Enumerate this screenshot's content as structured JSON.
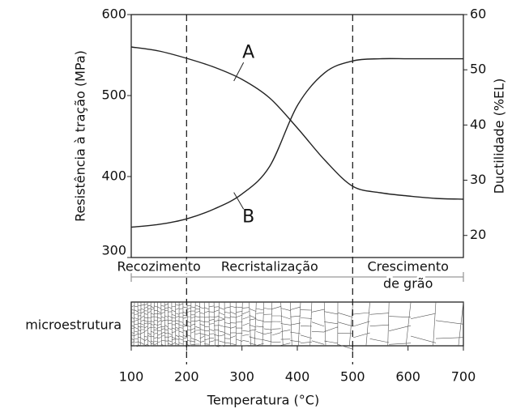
{
  "chart_data": {
    "type": "line",
    "xlabel": "Temperatura (°C)",
    "ylabel": "Resistência à tração (MPa)",
    "y2label": "Ductilidade (%EL)",
    "x": [
      100,
      150,
      200,
      250,
      300,
      350,
      400,
      450,
      500,
      550,
      600,
      650,
      700
    ],
    "series": [
      {
        "name": "A",
        "color": "#222222",
        "values": [
          560,
          555,
          546,
          535,
          520,
          497,
          460,
          420,
          388,
          380,
          376,
          373,
          372
        ]
      },
      {
        "name": "B",
        "color": "#222222",
        "axis": "y2",
        "values": [
          21.5,
          22,
          23,
          24.8,
          27.5,
          32.5,
          43.5,
          49.5,
          51.6,
          52,
          52,
          52,
          52
        ]
      }
    ],
    "xlim": [
      100,
      700
    ],
    "xticks": [
      100,
      200,
      300,
      400,
      500,
      600,
      700
    ],
    "ylim": [
      300,
      600
    ],
    "yticks": [
      300,
      400,
      500,
      600
    ],
    "y2lim": [
      16,
      60
    ],
    "y2ticks": [
      20,
      30,
      40,
      50,
      60
    ],
    "dividers": [
      200,
      500
    ],
    "regions": [
      [
        "Recozimento"
      ],
      [
        "Recristalização"
      ],
      [
        "Crescimento",
        "de grão"
      ]
    ],
    "strip_label": "microestrutura"
  }
}
